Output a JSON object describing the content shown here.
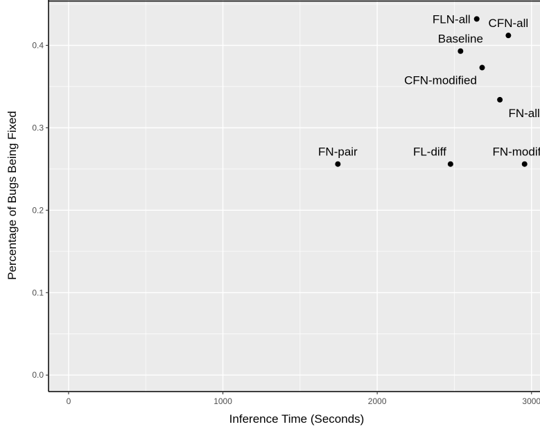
{
  "chart_data": {
    "type": "scatter",
    "xlabel": "Inference Time (Seconds)",
    "ylabel": "Percentage of Bugs Being Fixed",
    "xlim": [
      -130,
      3055
    ],
    "ylim": [
      -0.02,
      0.455
    ],
    "x_ticks": [
      0,
      1000,
      2000,
      3000
    ],
    "x_tick_labels": [
      "0",
      "1000",
      "2000",
      "3000"
    ],
    "y_ticks": [
      0.0,
      0.1,
      0.2,
      0.3,
      0.4
    ],
    "y_tick_labels": [
      "0.0",
      "0.1",
      "0.2",
      "0.3",
      "0.4"
    ],
    "grid": true,
    "colors": {
      "panel": "#ebebeb",
      "grid": "#ffffff",
      "point": "#000000"
    },
    "points": [
      {
        "label": "FLN-all",
        "x": 2645,
        "y": 0.432,
        "label_pos": "left"
      },
      {
        "label": "CFN-all",
        "x": 2850,
        "y": 0.412,
        "label_pos": "above"
      },
      {
        "label": "Baseline",
        "x": 2540,
        "y": 0.393,
        "label_pos": "above"
      },
      {
        "label": "CFN-modified",
        "x": 2680,
        "y": 0.373,
        "label_pos": "below-left"
      },
      {
        "label": "FN-all",
        "x": 2795,
        "y": 0.334,
        "label_pos": "below-right"
      },
      {
        "label": "FN-pair",
        "x": 1745,
        "y": 0.256,
        "label_pos": "above"
      },
      {
        "label": "FL-diff",
        "x": 2475,
        "y": 0.256,
        "label_pos": "above-left"
      },
      {
        "label": "FN-modified",
        "x": 2955,
        "y": 0.256,
        "label_pos": "above"
      }
    ]
  }
}
